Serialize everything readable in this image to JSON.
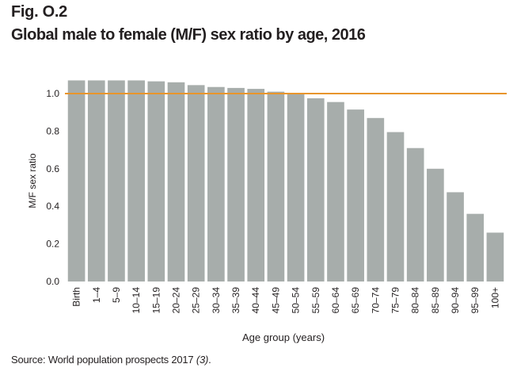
{
  "figure": {
    "label": "Fig. O.2",
    "title": "Global male to female (M/F) sex ratio by age, 2016"
  },
  "source": {
    "text": "Source: World population prospects 2017 ",
    "ref": "(3)",
    "end": "."
  },
  "colors": {
    "bar": "#a7adab",
    "reference_line": "#e8952c"
  },
  "chart_data": {
    "type": "bar",
    "title": "Global male to female (M/F) sex ratio by age, 2016",
    "xlabel": "Age group (years)",
    "ylabel": "M/F sex ratio",
    "ylim": [
      0,
      1.1
    ],
    "yticks": [
      0.0,
      0.2,
      0.4,
      0.6,
      0.8,
      1.0
    ],
    "ytick_labels": [
      "0.0",
      "0.2",
      "0.4",
      "0.6",
      "0.8",
      "1.0"
    ],
    "grid": false,
    "reference_line": {
      "y": 1.0,
      "label": ""
    },
    "categories": [
      "Birth",
      "1–4",
      "5–9",
      "10–14",
      "15–19",
      "20–24",
      "25–29",
      "30–34",
      "35–39",
      "40–44",
      "45–49",
      "50–54",
      "55–59",
      "60–64",
      "65–69",
      "70–74",
      "75–79",
      "80–84",
      "85–89",
      "90–94",
      "95–99",
      "100+"
    ],
    "values": [
      1.07,
      1.07,
      1.07,
      1.07,
      1.065,
      1.06,
      1.045,
      1.035,
      1.03,
      1.025,
      1.01,
      1.0,
      0.975,
      0.955,
      0.915,
      0.87,
      0.795,
      0.71,
      0.6,
      0.475,
      0.36,
      0.26
    ]
  }
}
